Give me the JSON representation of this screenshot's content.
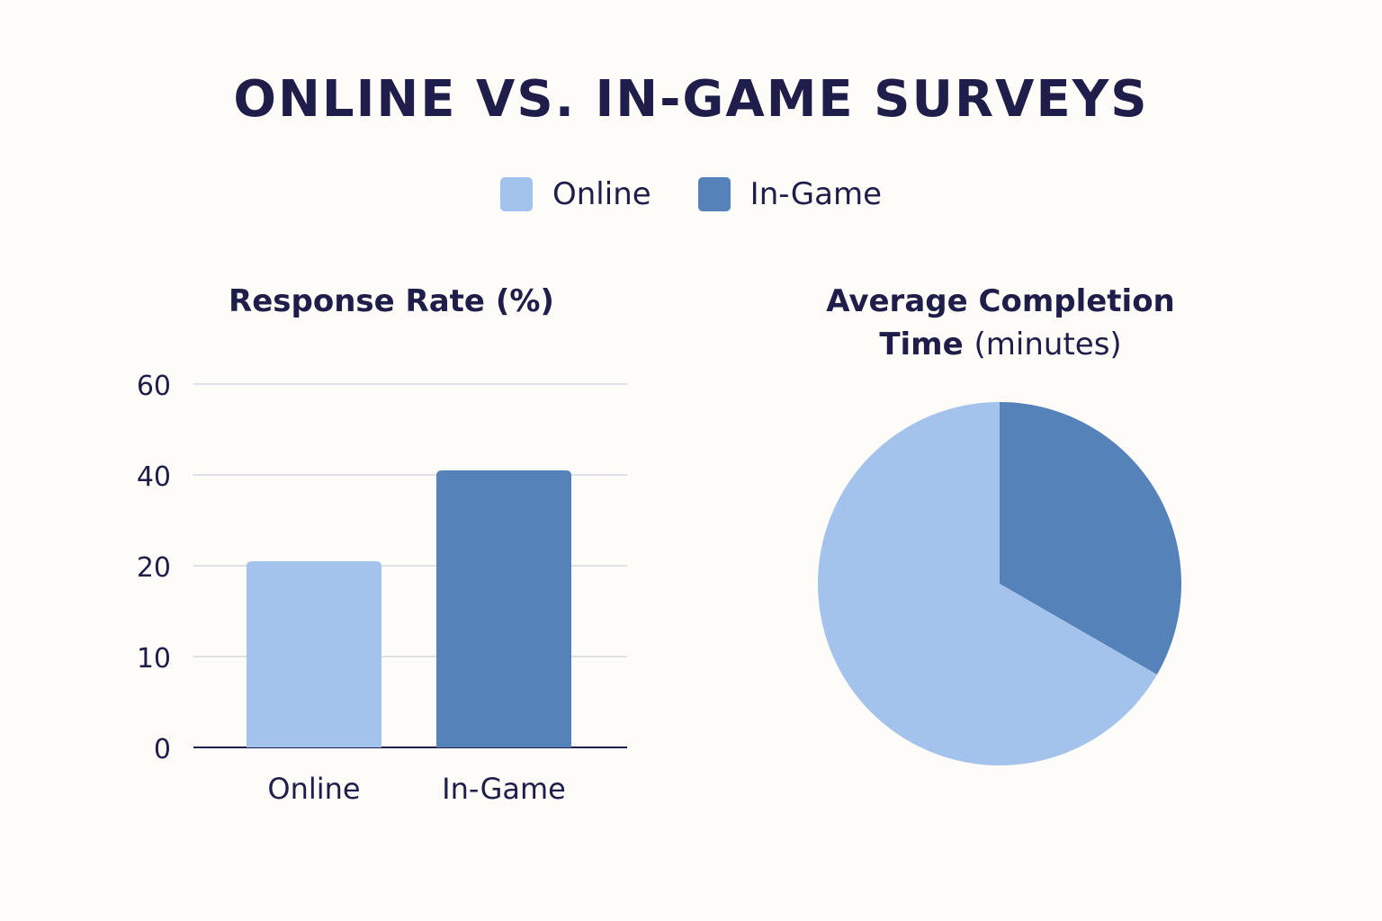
{
  "title": "ONLINE VS. IN-GAME SURVEYS",
  "colors": {
    "online": "#a3c3ec",
    "in_game": "#5582b8",
    "text": "#1f1d4a",
    "grid": "#d5d8df"
  },
  "legend": [
    {
      "label": "Online",
      "color": "#a3c3ec"
    },
    {
      "label": "In-Game",
      "color": "#5582b8"
    }
  ],
  "chart_data": [
    {
      "type": "bar",
      "title": "Response Rate (%)",
      "categories": [
        "Online",
        "In-Game"
      ],
      "values": [
        21,
        41
      ],
      "y_ticks": [
        0,
        10,
        20,
        40,
        60
      ],
      "ylim": [
        0,
        60
      ],
      "grid": true
    },
    {
      "type": "pie",
      "title_bold": "Average Completion",
      "title_line2_bold": "Time",
      "title_line2_rest": "(minutes)",
      "slices": [
        {
          "label": "In-Game",
          "value": 1,
          "color": "#5582b8"
        },
        {
          "label": "Online",
          "value": 2,
          "color": "#a3c3ec"
        }
      ]
    }
  ]
}
